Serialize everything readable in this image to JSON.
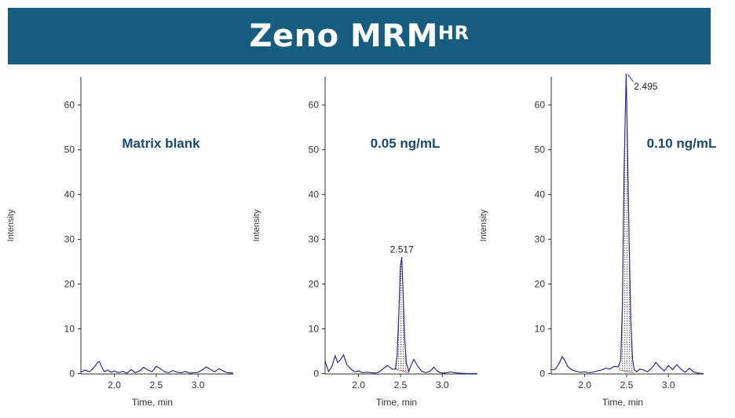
{
  "header": {
    "title": "Zeno MRM",
    "title_sup": "HR"
  },
  "colors": {
    "banner": "#175D80",
    "label": "#1B4A6B",
    "trace": "#2B2B8C",
    "axis": "#333333",
    "baseline": "#C86464",
    "fill_dot": "#555555"
  },
  "chart_data": [
    {
      "type": "line",
      "label": "Matrix blank",
      "xlabel": "Time, min",
      "ylabel": "Intensity",
      "xlim": [
        1.6,
        3.42
      ],
      "ylim": [
        0,
        66
      ],
      "xticks": [
        "2.0",
        "2.5",
        "3.0"
      ],
      "yticks": [
        "0",
        "10",
        "20",
        "30",
        "40",
        "50",
        "60"
      ],
      "series": [
        {
          "x": [
            1.6,
            1.65,
            1.7,
            1.75,
            1.8,
            1.82,
            1.85,
            1.88,
            1.92,
            1.96,
            2.0,
            2.05,
            2.1,
            2.15,
            2.2,
            2.25,
            2.3,
            2.35,
            2.4,
            2.45,
            2.5,
            2.55,
            2.6,
            2.65,
            2.7,
            2.75,
            2.8,
            2.85,
            2.9,
            2.95,
            3.0,
            3.05,
            3.1,
            3.15,
            3.2,
            3.25,
            3.3,
            3.35,
            3.42
          ],
          "y": [
            0.3,
            0.8,
            0.4,
            1.2,
            2.5,
            2.7,
            1.5,
            0.4,
            0.8,
            0.3,
            0.6,
            0.2,
            0.5,
            0.1,
            0.9,
            0.2,
            0.6,
            1.4,
            0.8,
            0.4,
            1.6,
            1.1,
            0.4,
            0.2,
            0.7,
            0.3,
            0.2,
            0.5,
            0.1,
            0.2,
            0.3,
            0.8,
            1.5,
            0.9,
            0.4,
            1.1,
            0.6,
            0.2,
            0.1
          ]
        }
      ]
    },
    {
      "type": "line",
      "label": "0.05 ng/mL",
      "xlabel": "Time, min",
      "ylabel": "Intensity",
      "xlim": [
        1.6,
        3.42
      ],
      "ylim": [
        0,
        66
      ],
      "xticks": [
        "2.0",
        "2.5",
        "3.0"
      ],
      "yticks": [
        "0",
        "10",
        "20",
        "30",
        "40",
        "50",
        "60"
      ],
      "peak_label": "2.517",
      "peak": {
        "x": 2.517,
        "y": 26,
        "start": 2.44,
        "end": 2.6,
        "base_start": 1.0,
        "base_end": 0.2
      },
      "series": [
        {
          "x": [
            1.6,
            1.64,
            1.68,
            1.72,
            1.75,
            1.78,
            1.82,
            1.86,
            1.9,
            1.95,
            2.0,
            2.05,
            2.1,
            2.15,
            2.2,
            2.25,
            2.3,
            2.35,
            2.4,
            2.44,
            2.46,
            2.48,
            2.5,
            2.517,
            2.53,
            2.55,
            2.57,
            2.6,
            2.63,
            2.66,
            2.7,
            2.75,
            2.8,
            2.85,
            2.9,
            2.95,
            3.0,
            3.05,
            3.1,
            3.15,
            3.2,
            3.3,
            3.42
          ],
          "y": [
            2.8,
            0.5,
            1.5,
            4.0,
            2.5,
            3.0,
            4.2,
            2.0,
            1.2,
            0.4,
            0.6,
            0.2,
            0.3,
            0.2,
            0.1,
            0.4,
            1.2,
            1.8,
            1.0,
            1.0,
            4.0,
            13.0,
            24.0,
            26.0,
            19.0,
            8.0,
            2.5,
            0.5,
            2.0,
            3.2,
            1.8,
            0.6,
            0.2,
            0.5,
            1.4,
            0.4,
            0.1,
            0.2,
            0.4,
            0.2,
            0.1,
            0.0,
            0.0
          ]
        }
      ]
    },
    {
      "type": "line",
      "label": "0.10 ng/mL",
      "xlabel": "Time, min",
      "ylabel": "Intensity",
      "xlim": [
        1.6,
        3.42
      ],
      "ylim": [
        0,
        66
      ],
      "xticks": [
        "2.0",
        "2.5",
        "3.0"
      ],
      "yticks": [
        "0",
        "10",
        "20",
        "30",
        "40",
        "50",
        "60"
      ],
      "peak_label": "2.495",
      "peak": {
        "x": 2.495,
        "y": 67,
        "start": 2.41,
        "end": 2.59,
        "base_start": 0.8,
        "base_end": 0.2
      },
      "series": [
        {
          "x": [
            1.6,
            1.65,
            1.7,
            1.73,
            1.76,
            1.8,
            1.85,
            1.9,
            1.95,
            2.0,
            2.05,
            2.1,
            2.15,
            2.2,
            2.25,
            2.3,
            2.35,
            2.4,
            2.43,
            2.45,
            2.47,
            2.495,
            2.51,
            2.53,
            2.55,
            2.57,
            2.59,
            2.62,
            2.66,
            2.7,
            2.75,
            2.8,
            2.85,
            2.9,
            2.95,
            3.0,
            3.05,
            3.1,
            3.15,
            3.2,
            3.25,
            3.3,
            3.35,
            3.42
          ],
          "y": [
            0.8,
            1.0,
            2.5,
            3.8,
            3.0,
            1.5,
            0.8,
            0.5,
            0.3,
            0.4,
            0.2,
            0.3,
            0.6,
            0.8,
            1.2,
            1.0,
            1.6,
            1.5,
            3.0,
            15.0,
            45.0,
            67.0,
            52.0,
            30.0,
            12.0,
            3.5,
            1.0,
            0.4,
            1.0,
            0.8,
            0.4,
            1.2,
            2.5,
            1.4,
            0.6,
            1.8,
            0.9,
            2.0,
            1.0,
            0.3,
            1.2,
            0.4,
            0.1,
            0.0
          ]
        }
      ]
    }
  ]
}
